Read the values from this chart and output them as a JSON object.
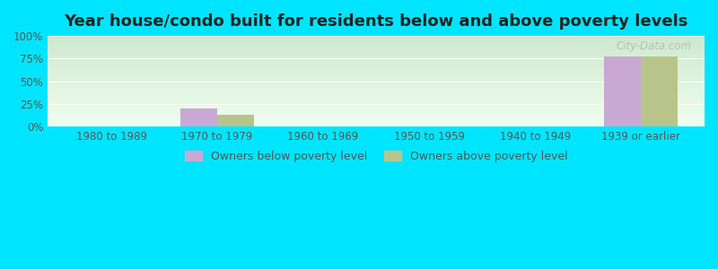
{
  "title": "Year house/condo built for residents below and above poverty levels",
  "categories": [
    "1980 to 1989",
    "1970 to 1979",
    "1960 to 1969",
    "1950 to 1959",
    "1940 to 1949",
    "1939 or earlier"
  ],
  "below_poverty": [
    0.5,
    20.0,
    0.5,
    0.5,
    0.5,
    77.5
  ],
  "above_poverty": [
    0.5,
    13.0,
    0.5,
    0.5,
    0.5,
    77.0
  ],
  "below_color": "#c9a8d4",
  "above_color": "#b8c48a",
  "bar_width": 0.35,
  "ylim": [
    0,
    100
  ],
  "yticks": [
    0,
    25,
    50,
    75,
    100
  ],
  "yticklabels": [
    "0%",
    "25%",
    "50%",
    "75%",
    "100%"
  ],
  "legend_below": "Owners below poverty level",
  "legend_above": "Owners above poverty level",
  "bg_color": "#00e5ff",
  "plot_bg_top": "#cde8cd",
  "plot_bg_bottom": "#f0fff0",
  "title_fontsize": 13,
  "watermark": "City-Data.com"
}
